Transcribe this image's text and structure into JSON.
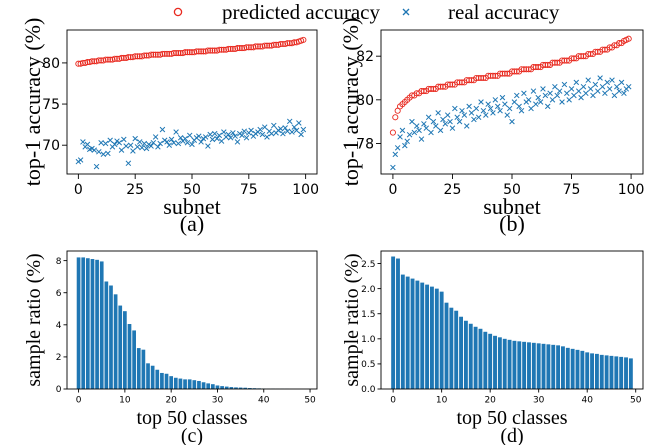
{
  "legend": {
    "predicted_label": "predicted accuracy",
    "real_label": "real accuracy",
    "predicted_color": "#e8291f",
    "real_color": "#1f77b4"
  },
  "chart_data": [
    {
      "id": "a",
      "type": "scatter",
      "caption": "(a)",
      "xlabel": "subnet",
      "ylabel": "top-1 accuracy (%)",
      "xlim": [
        -5,
        105
      ],
      "ylim": [
        66.5,
        84
      ],
      "xticks": [
        0,
        25,
        50,
        75,
        100
      ],
      "yticks": [
        70,
        75,
        80
      ],
      "series": [
        {
          "name": "predicted accuracy",
          "marker": "circle",
          "x": [
            0,
            1,
            2,
            3,
            4,
            5,
            6,
            7,
            8,
            9,
            10,
            11,
            12,
            13,
            14,
            15,
            16,
            17,
            18,
            19,
            20,
            21,
            22,
            23,
            24,
            25,
            26,
            27,
            28,
            29,
            30,
            31,
            32,
            33,
            34,
            35,
            36,
            37,
            38,
            39,
            40,
            41,
            42,
            43,
            44,
            45,
            46,
            47,
            48,
            49,
            50,
            51,
            52,
            53,
            54,
            55,
            56,
            57,
            58,
            59,
            60,
            61,
            62,
            63,
            64,
            65,
            66,
            67,
            68,
            69,
            70,
            71,
            72,
            73,
            74,
            75,
            76,
            77,
            78,
            79,
            80,
            81,
            82,
            83,
            84,
            85,
            86,
            87,
            88,
            89,
            90,
            91,
            92,
            93,
            94,
            95,
            96,
            97,
            98,
            99
          ],
          "y": [
            79.9,
            79.9,
            80.0,
            80.0,
            80.1,
            80.1,
            80.2,
            80.2,
            80.2,
            80.3,
            80.3,
            80.3,
            80.4,
            80.4,
            80.4,
            80.4,
            80.5,
            80.5,
            80.5,
            80.6,
            80.6,
            80.6,
            80.7,
            80.7,
            80.7,
            80.8,
            80.8,
            80.8,
            80.8,
            80.9,
            80.9,
            80.9,
            81.0,
            81.0,
            81.0,
            81.0,
            81.0,
            81.1,
            81.1,
            81.1,
            81.1,
            81.1,
            81.2,
            81.2,
            81.2,
            81.2,
            81.2,
            81.3,
            81.3,
            81.3,
            81.3,
            81.3,
            81.4,
            81.4,
            81.4,
            81.4,
            81.4,
            81.5,
            81.5,
            81.5,
            81.5,
            81.5,
            81.6,
            81.6,
            81.6,
            81.6,
            81.7,
            81.7,
            81.7,
            81.7,
            81.8,
            81.8,
            81.8,
            81.8,
            81.9,
            81.9,
            81.9,
            81.9,
            82.0,
            82.0,
            82.0,
            82.0,
            82.1,
            82.1,
            82.1,
            82.1,
            82.2,
            82.2,
            82.2,
            82.3,
            82.3,
            82.3,
            82.4,
            82.4,
            82.4,
            82.5,
            82.5,
            82.6,
            82.7,
            82.8
          ]
        },
        {
          "name": "real accuracy",
          "marker": "x",
          "x": [
            0,
            1,
            2,
            3,
            4,
            5,
            6,
            7,
            8,
            9,
            10,
            11,
            12,
            13,
            14,
            15,
            16,
            17,
            18,
            19,
            20,
            21,
            22,
            23,
            24,
            25,
            26,
            27,
            28,
            29,
            30,
            31,
            32,
            33,
            34,
            35,
            36,
            37,
            38,
            39,
            40,
            41,
            42,
            43,
            44,
            45,
            46,
            47,
            48,
            49,
            50,
            51,
            52,
            53,
            54,
            55,
            56,
            57,
            58,
            59,
            60,
            61,
            62,
            63,
            64,
            65,
            66,
            67,
            68,
            69,
            70,
            71,
            72,
            73,
            74,
            75,
            76,
            77,
            78,
            79,
            80,
            81,
            82,
            83,
            84,
            85,
            86,
            87,
            88,
            89,
            90,
            91,
            92,
            93,
            94,
            95,
            96,
            97,
            98,
            99
          ],
          "y": [
            68.0,
            68.2,
            70.4,
            69.8,
            70.1,
            69.5,
            69.6,
            69.4,
            67.4,
            69.2,
            70.3,
            68.9,
            70.2,
            69.0,
            70.6,
            69.8,
            70.1,
            70.5,
            70.3,
            69.4,
            70.7,
            69.9,
            67.8,
            70.0,
            69.3,
            70.8,
            69.8,
            70.4,
            69.7,
            70.2,
            69.6,
            70.1,
            69.9,
            70.3,
            71.0,
            69.8,
            70.2,
            71.9,
            70.6,
            70.4,
            70.0,
            70.7,
            70.3,
            71.6,
            70.2,
            70.9,
            70.5,
            70.8,
            70.3,
            71.2,
            70.1,
            70.6,
            70.9,
            71.1,
            70.4,
            70.8,
            71.0,
            69.9,
            71.3,
            70.7,
            71.4,
            70.8,
            71.2,
            70.5,
            71.6,
            71.0,
            71.3,
            70.9,
            71.5,
            71.1,
            70.4,
            71.4,
            71.2,
            71.7,
            70.9,
            71.5,
            71.8,
            71.1,
            71.4,
            71.6,
            71.9,
            71.3,
            72.2,
            71.0,
            71.7,
            71.4,
            72.4,
            71.5,
            71.8,
            72.0,
            71.4,
            72.1,
            71.7,
            72.9,
            71.6,
            72.2,
            71.8,
            72.7,
            71.3,
            71.9
          ]
        }
      ]
    },
    {
      "id": "b",
      "type": "scatter",
      "caption": "(b)",
      "xlabel": "subnet",
      "ylabel": "top-1 accuracy (%)",
      "xlim": [
        -5,
        105
      ],
      "ylim": [
        76.6,
        83.2
      ],
      "xticks": [
        0,
        25,
        50,
        75,
        100
      ],
      "yticks": [
        78,
        80,
        82
      ],
      "series": [
        {
          "name": "predicted accuracy",
          "marker": "circle",
          "x": [
            0,
            1,
            2,
            3,
            4,
            5,
            6,
            7,
            8,
            9,
            10,
            11,
            12,
            13,
            14,
            15,
            16,
            17,
            18,
            19,
            20,
            21,
            22,
            23,
            24,
            25,
            26,
            27,
            28,
            29,
            30,
            31,
            32,
            33,
            34,
            35,
            36,
            37,
            38,
            39,
            40,
            41,
            42,
            43,
            44,
            45,
            46,
            47,
            48,
            49,
            50,
            51,
            52,
            53,
            54,
            55,
            56,
            57,
            58,
            59,
            60,
            61,
            62,
            63,
            64,
            65,
            66,
            67,
            68,
            69,
            70,
            71,
            72,
            73,
            74,
            75,
            76,
            77,
            78,
            79,
            80,
            81,
            82,
            83,
            84,
            85,
            86,
            87,
            88,
            89,
            90,
            91,
            92,
            93,
            94,
            95,
            96,
            97,
            98,
            99
          ],
          "y": [
            78.5,
            79.2,
            79.5,
            79.7,
            79.8,
            79.9,
            80.0,
            80.1,
            80.2,
            80.2,
            80.3,
            80.3,
            80.4,
            80.4,
            80.4,
            80.5,
            80.5,
            80.5,
            80.5,
            80.6,
            80.6,
            80.6,
            80.6,
            80.7,
            80.7,
            80.7,
            80.7,
            80.8,
            80.8,
            80.8,
            80.8,
            80.9,
            80.9,
            80.9,
            80.9,
            81.0,
            81.0,
            81.0,
            81.0,
            81.0,
            81.1,
            81.1,
            81.1,
            81.1,
            81.1,
            81.2,
            81.2,
            81.2,
            81.2,
            81.2,
            81.3,
            81.3,
            81.3,
            81.3,
            81.4,
            81.4,
            81.4,
            81.4,
            81.4,
            81.5,
            81.5,
            81.5,
            81.5,
            81.6,
            81.6,
            81.6,
            81.6,
            81.7,
            81.7,
            81.7,
            81.7,
            81.8,
            81.8,
            81.8,
            81.8,
            81.9,
            81.9,
            81.9,
            82.0,
            82.0,
            82.0,
            82.0,
            82.1,
            82.1,
            82.1,
            82.2,
            82.2,
            82.2,
            82.3,
            82.3,
            82.3,
            82.4,
            82.4,
            82.5,
            82.5,
            82.6,
            82.6,
            82.7,
            82.75,
            82.8
          ]
        },
        {
          "name": "real accuracy",
          "marker": "x",
          "x": [
            0,
            1,
            2,
            3,
            4,
            5,
            6,
            7,
            8,
            9,
            10,
            11,
            12,
            13,
            14,
            15,
            16,
            17,
            18,
            19,
            20,
            21,
            22,
            23,
            24,
            25,
            26,
            27,
            28,
            29,
            30,
            31,
            32,
            33,
            34,
            35,
            36,
            37,
            38,
            39,
            40,
            41,
            42,
            43,
            44,
            45,
            46,
            47,
            48,
            49,
            50,
            51,
            52,
            53,
            54,
            55,
            56,
            57,
            58,
            59,
            60,
            61,
            62,
            63,
            64,
            65,
            66,
            67,
            68,
            69,
            70,
            71,
            72,
            73,
            74,
            75,
            76,
            77,
            78,
            79,
            80,
            81,
            82,
            83,
            84,
            85,
            86,
            87,
            88,
            89,
            90,
            91,
            92,
            93,
            94,
            95,
            96,
            97,
            98,
            99
          ],
          "y": [
            76.9,
            77.5,
            77.8,
            78.3,
            78.6,
            77.9,
            78.1,
            78.4,
            79.0,
            78.5,
            78.8,
            78.6,
            78.2,
            78.9,
            78.7,
            79.2,
            78.5,
            79.0,
            78.8,
            79.4,
            78.6,
            79.1,
            78.9,
            79.3,
            79.0,
            78.7,
            79.6,
            79.2,
            79.0,
            79.5,
            79.3,
            78.8,
            79.7,
            79.4,
            79.1,
            79.6,
            79.2,
            79.9,
            79.5,
            79.3,
            79.8,
            79.6,
            79.4,
            80.0,
            79.7,
            79.5,
            80.1,
            79.8,
            79.3,
            79.6,
            79.0,
            79.9,
            80.2,
            79.7,
            79.5,
            80.3,
            79.9,
            80.0,
            79.6,
            80.4,
            79.8,
            80.1,
            79.9,
            80.5,
            80.2,
            79.7,
            80.3,
            80.0,
            80.6,
            80.2,
            80.4,
            79.9,
            80.7,
            80.3,
            80.0,
            80.5,
            80.2,
            80.8,
            80.4,
            80.1,
            80.6,
            80.3,
            80.9,
            80.5,
            80.2,
            80.7,
            80.4,
            81.0,
            80.6,
            80.3,
            80.8,
            80.5,
            80.9,
            80.2,
            80.6,
            80.4,
            80.8,
            80.3,
            80.5,
            80.6
          ]
        }
      ]
    },
    {
      "id": "c",
      "type": "bar",
      "caption": "(c)",
      "xlabel": "top 50 classes",
      "ylabel": "sample ratio (%)",
      "xlim": [
        -2.5,
        51.5
      ],
      "ylim": [
        0,
        8.6
      ],
      "xticks": [
        0,
        10,
        20,
        30,
        40,
        50
      ],
      "yticks": [
        0,
        2,
        4,
        6,
        8
      ],
      "categories": [
        0,
        1,
        2,
        3,
        4,
        5,
        6,
        7,
        8,
        9,
        10,
        11,
        12,
        13,
        14,
        15,
        16,
        17,
        18,
        19,
        20,
        21,
        22,
        23,
        24,
        25,
        26,
        27,
        28,
        29,
        30,
        31,
        32,
        33,
        34,
        35,
        36,
        37,
        38,
        39,
        40,
        41,
        42,
        43,
        44,
        45,
        46,
        47,
        48,
        49
      ],
      "values": [
        8.2,
        8.2,
        8.15,
        8.1,
        8.05,
        7.95,
        6.7,
        6.45,
        5.9,
        5.2,
        4.85,
        4.05,
        3.65,
        2.55,
        2.45,
        1.6,
        1.45,
        1.2,
        1.0,
        0.95,
        0.8,
        0.7,
        0.65,
        0.6,
        0.6,
        0.55,
        0.5,
        0.42,
        0.35,
        0.3,
        0.22,
        0.18,
        0.15,
        0.12,
        0.1,
        0.09,
        0.08,
        0.06,
        0.05,
        0.04,
        0.03,
        0.02,
        0.02,
        0.01,
        0.01,
        0.01,
        0.0,
        0.0,
        0.0,
        0.0
      ]
    },
    {
      "id": "d",
      "type": "bar",
      "caption": "(d)",
      "xlabel": "top 50 classes",
      "ylabel": "sample ratio (%)",
      "xlim": [
        -2.5,
        51.5
      ],
      "ylim": [
        0,
        2.75
      ],
      "xticks": [
        0,
        10,
        20,
        30,
        40,
        50
      ],
      "yticks": [
        0.0,
        0.5,
        1.0,
        1.5,
        2.0,
        2.5
      ],
      "categories": [
        0,
        1,
        2,
        3,
        4,
        5,
        6,
        7,
        8,
        9,
        10,
        11,
        12,
        13,
        14,
        15,
        16,
        17,
        18,
        19,
        20,
        21,
        22,
        23,
        24,
        25,
        26,
        27,
        28,
        29,
        30,
        31,
        32,
        33,
        34,
        35,
        36,
        37,
        38,
        39,
        40,
        41,
        42,
        43,
        44,
        45,
        46,
        47,
        48,
        49
      ],
      "values": [
        2.64,
        2.6,
        2.28,
        2.24,
        2.2,
        2.16,
        2.12,
        2.08,
        2.04,
        2.0,
        1.94,
        1.72,
        1.62,
        1.56,
        1.44,
        1.36,
        1.3,
        1.24,
        1.2,
        1.14,
        1.1,
        1.06,
        1.03,
        1.0,
        0.98,
        0.96,
        0.95,
        0.94,
        0.93,
        0.92,
        0.91,
        0.9,
        0.89,
        0.88,
        0.87,
        0.85,
        0.82,
        0.8,
        0.78,
        0.76,
        0.73,
        0.71,
        0.7,
        0.68,
        0.67,
        0.66,
        0.65,
        0.64,
        0.63,
        0.61
      ]
    }
  ]
}
